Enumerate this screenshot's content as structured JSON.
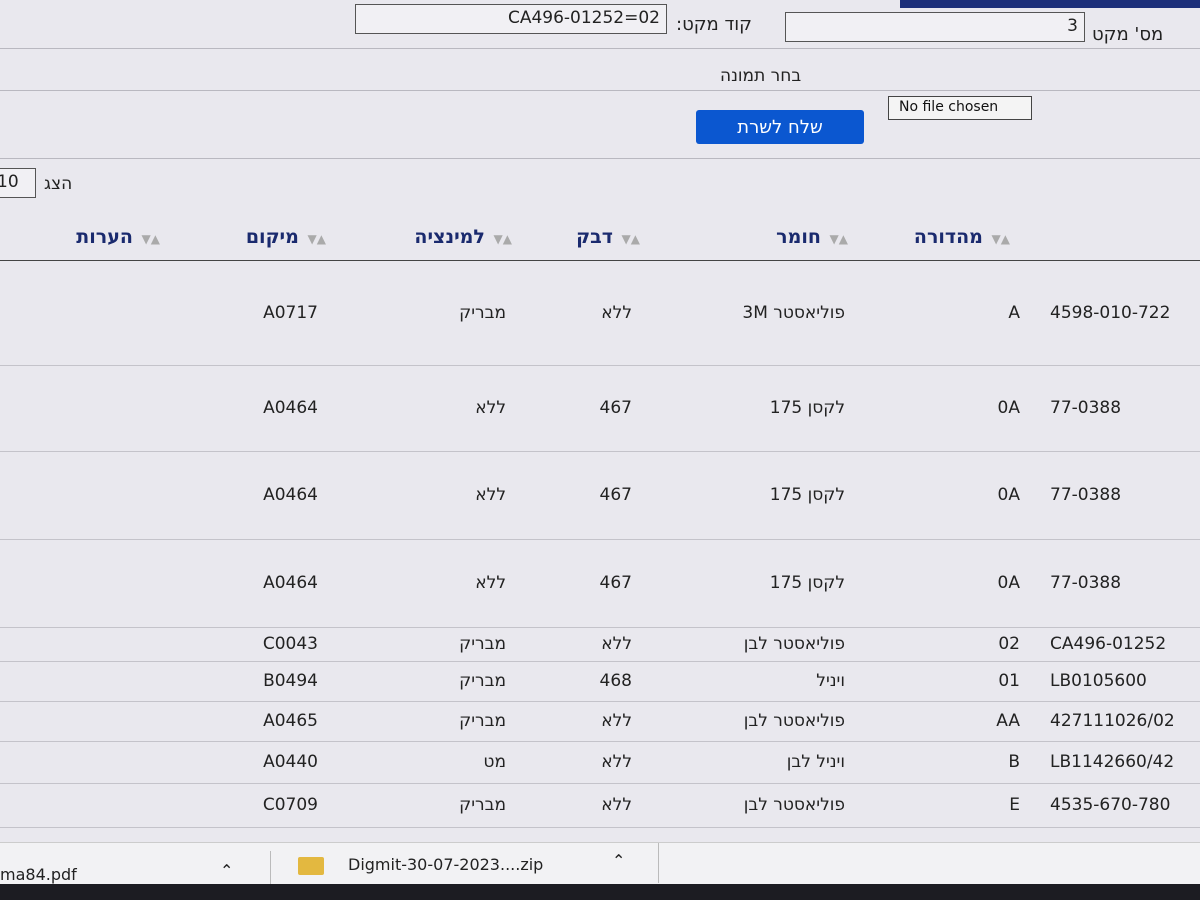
{
  "form": {
    "qty_label": "מס' מקט",
    "qty_value": "3",
    "code_label": "קוד מקט:",
    "code_value": "CA496-01252=02",
    "image_label": "בחר תמונה",
    "file_status": "No file chosen",
    "submit_label": "שלח לשרת"
  },
  "table_controls": {
    "show_label": "הצג",
    "show_value": "10"
  },
  "table": {
    "headers": [
      "מהדורה",
      "חומר",
      "דבק",
      "למינציה",
      "מיקום",
      "הערות"
    ],
    "rows": [
      {
        "code": "4598-010-722",
        "version": "A",
        "material": "פוליאסטר 3M",
        "glue": "ללא",
        "lamination": "מבריק",
        "location": "A0717",
        "notes": ""
      },
      {
        "code": "77-0388",
        "version": "0A",
        "material": "לקסן 175",
        "glue": "467",
        "lamination": "ללא",
        "location": "A0464",
        "notes": ""
      },
      {
        "code": "77-0388",
        "version": "0A",
        "material": "לקסן 175",
        "glue": "467",
        "lamination": "ללא",
        "location": "A0464",
        "notes": ""
      },
      {
        "code": "77-0388",
        "version": "0A",
        "material": "לקסן 175",
        "glue": "467",
        "lamination": "ללא",
        "location": "A0464",
        "notes": ""
      },
      {
        "code": "CA496-01252",
        "version": "02",
        "material": "פוליאסטר לבן",
        "glue": "ללא",
        "lamination": "מבריק",
        "location": "C0043",
        "notes": ""
      },
      {
        "code": "LB0105600",
        "version": "01",
        "material": "ויניל",
        "glue": "468",
        "lamination": "מבריק",
        "location": "B0494",
        "notes": ""
      },
      {
        "code": "427111026/02",
        "version": "AA",
        "material": "פוליאסטר לבן",
        "glue": "ללא",
        "lamination": "מבריק",
        "location": "A0465",
        "notes": ""
      },
      {
        "code": "LB1142660/42",
        "version": "B",
        "material": "ויניל לבן",
        "glue": "ללא",
        "lamination": "מט",
        "location": "A0440",
        "notes": ""
      },
      {
        "code": "4535-670-780",
        "version": "E",
        "material": "פוליאסטר לבן",
        "glue": "ללא",
        "lamination": "מבריק",
        "location": "C0709",
        "notes": ""
      }
    ]
  },
  "downloads": [
    {
      "name": "ma84.pdf"
    },
    {
      "name": "Digmit-30-07-2023....zip"
    }
  ]
}
